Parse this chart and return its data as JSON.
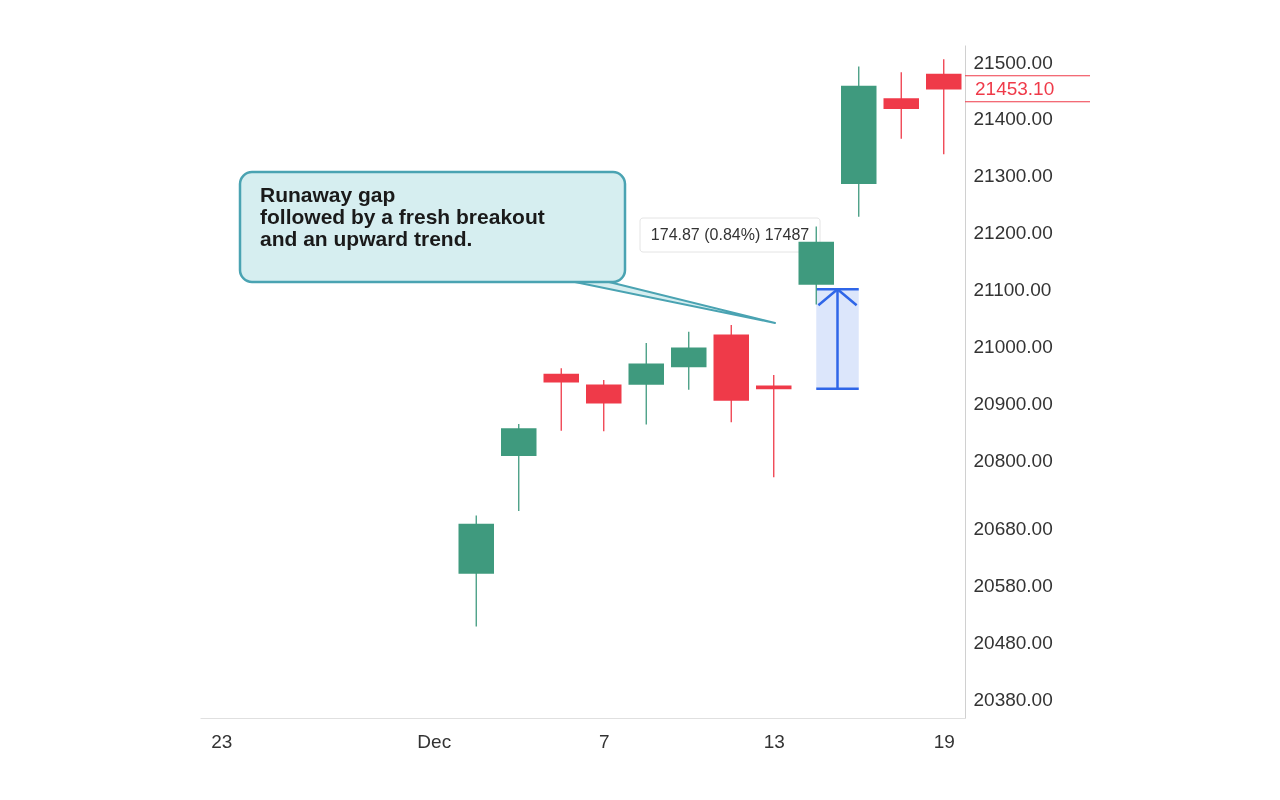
{
  "chart_data": {
    "type": "candlestick",
    "categories": [
      "23",
      null,
      null,
      null,
      null,
      "Dec",
      null,
      null,
      null,
      "7",
      null,
      null,
      null,
      "13",
      null,
      null,
      null,
      "19"
    ],
    "ohlc": [
      null,
      null,
      null,
      null,
      null,
      null,
      [
        20602,
        20703,
        20508,
        20687
      ],
      [
        20809,
        20864,
        20711,
        20855
      ],
      [
        20951,
        20962,
        20852,
        20938
      ],
      [
        20932,
        20941,
        20851,
        20901
      ],
      [
        20934,
        21006,
        20863,
        20969
      ],
      [
        20965,
        21026,
        20924,
        20997
      ],
      [
        21020,
        21038,
        20867,
        20906
      ],
      [
        20930,
        20950,
        20770,
        20926
      ],
      [
        21110,
        21211,
        21074,
        21183
      ],
      [
        21287,
        21492,
        21228,
        21457
      ],
      [
        21435,
        21482,
        21365,
        21419
      ],
      [
        21478,
        21505,
        21338,
        21453.1
      ]
    ],
    "colors": [
      null,
      null,
      null,
      null,
      null,
      null,
      "#3f9a7e",
      "#3f9a7e",
      "#ef3a49",
      "#ef3a49",
      "#3f9a7e",
      "#3f9a7e",
      "#ef3a49",
      "#ef3a49",
      "#3f9a7e",
      "#3f9a7e",
      "#ef3a49",
      "#ef3a49"
    ],
    "ylim": [
      20347,
      21530
    ],
    "yticks": [
      {
        "value": 20380,
        "label": "20380.00"
      },
      {
        "value": 20480,
        "label": "20480.00"
      },
      {
        "value": 20580,
        "label": "20580.00"
      },
      {
        "value": 20680,
        "label": "20680.00"
      },
      {
        "value": 20800,
        "label": "20800.00"
      },
      {
        "value": 20900,
        "label": "20900.00"
      },
      {
        "value": 21000,
        "label": "21000.00"
      },
      {
        "value": 21100,
        "label": "21100.00"
      },
      {
        "value": 21200,
        "label": "21200.00"
      },
      {
        "value": 21300,
        "label": "21300.00"
      },
      {
        "value": 21400,
        "label": "21400.00"
      },
      {
        "value": 21500,
        "label": "21500.00"
      }
    ],
    "grid": false,
    "annotations": [
      "Runaway gap\nfollowed by a fresh breakout\nand an upward trend.",
      "174.87 (0.84%) 17487",
      "21453.10"
    ],
    "bands": [
      {
        "axis": "y",
        "from": 20925.8,
        "to": 21100.67,
        "color": "#dce6fb"
      }
    ]
  }
}
